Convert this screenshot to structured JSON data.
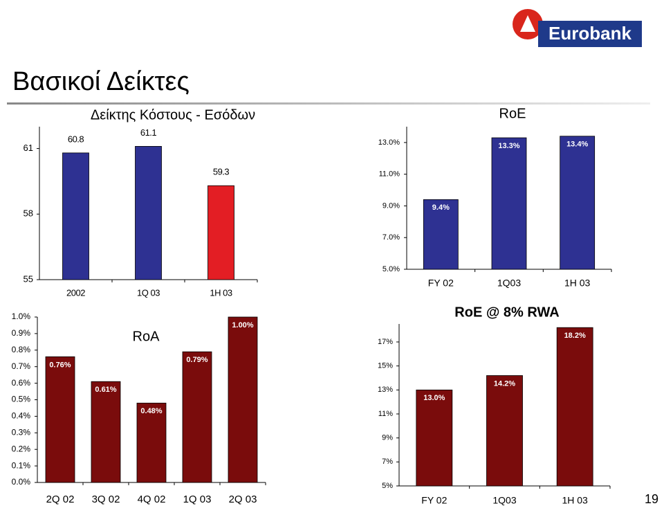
{
  "title": "Βασικοί Δείκτες",
  "logo": "Eurobank",
  "page_number": "19",
  "chart_data": [
    {
      "type": "bar",
      "title": "Δείκτης Κόστους - Εσόδων",
      "categories": [
        "2002",
        "1Q 03",
        "1H 03"
      ],
      "values": [
        60.8,
        61.1,
        59.3
      ],
      "colors": [
        "#2e3192",
        "#2e3192",
        "#e31e24"
      ],
      "ylim": [
        55,
        62
      ],
      "yticks": [
        55,
        58,
        61
      ]
    },
    {
      "type": "bar",
      "title": "RoE",
      "categories": [
        "FY 02",
        "1Q03",
        "1H 03"
      ],
      "values": [
        9.4,
        13.3,
        13.4
      ],
      "value_labels": [
        "9.4%",
        "13.3%",
        "13.4%"
      ],
      "color": "#2e3192",
      "ylim": [
        5,
        14
      ],
      "yticks": [
        {
          "value": 5,
          "label": "5.0%"
        },
        {
          "value": 7,
          "label": "7.0%"
        },
        {
          "value": 9,
          "label": "9.0%"
        },
        {
          "value": 11,
          "label": "11.0%"
        },
        {
          "value": 13,
          "label": "13.0%"
        }
      ]
    },
    {
      "type": "bar",
      "title": "RoA",
      "categories": [
        "2Q 02",
        "3Q 02",
        "4Q 02",
        "1Q 03",
        "2Q 03"
      ],
      "values": [
        0.76,
        0.61,
        0.48,
        0.79,
        1.0
      ],
      "value_labels": [
        "0.76%",
        "0.61%",
        "0.48%",
        "0.79%",
        "1.00%"
      ],
      "color": "#7a0c0c",
      "ylim": [
        0,
        1.0
      ],
      "yticks": [
        {
          "value": 0,
          "label": "0.0%"
        },
        {
          "value": 0.1,
          "label": "0.1%"
        },
        {
          "value": 0.2,
          "label": "0.2%"
        },
        {
          "value": 0.3,
          "label": "0.3%"
        },
        {
          "value": 0.4,
          "label": "0.4%"
        },
        {
          "value": 0.5,
          "label": "0.5%"
        },
        {
          "value": 0.6,
          "label": "0.6%"
        },
        {
          "value": 0.7,
          "label": "0.7%"
        },
        {
          "value": 0.8,
          "label": "0.8%"
        },
        {
          "value": 0.9,
          "label": "0.9%"
        },
        {
          "value": 1.0,
          "label": "1.0%"
        }
      ]
    },
    {
      "type": "bar",
      "title": "RoE  @ 8% RWA",
      "categories": [
        "FY 02",
        "1Q03",
        "1H 03"
      ],
      "values": [
        13.0,
        14.2,
        18.2
      ],
      "value_labels": [
        "13.0%",
        "14.2%",
        "18.2%"
      ],
      "color": "#7a0c0c",
      "ylim": [
        5,
        18.5
      ],
      "yticks": [
        {
          "value": 5,
          "label": "5%"
        },
        {
          "value": 7,
          "label": "7%"
        },
        {
          "value": 9,
          "label": "9%"
        },
        {
          "value": 11,
          "label": "11%"
        },
        {
          "value": 13,
          "label": "13%"
        },
        {
          "value": 15,
          "label": "15%"
        },
        {
          "value": 17,
          "label": "17%"
        }
      ]
    }
  ]
}
